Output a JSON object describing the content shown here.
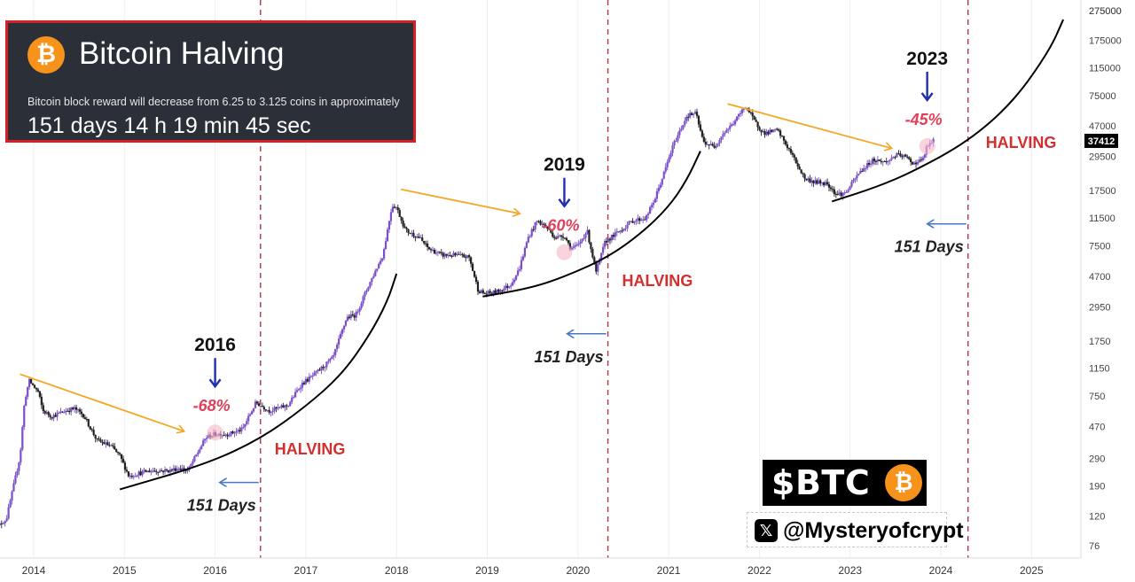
{
  "countdown": {
    "title": "Bitcoin Halving",
    "description": "Bitcoin block reward will decrease from 6.25 to 3.125 coins in approximately",
    "timer": "151 days 14 h 19 min 45 sec",
    "logo_icon": "bitcoin-logo-icon"
  },
  "badge": {
    "ticker": "$BTC",
    "logo_icon": "bitcoin-logo-icon"
  },
  "handle": {
    "icon": "x-logo-icon",
    "text": "@Mysteryofcrypt"
  },
  "colors": {
    "candle_up": "#7b4fc9",
    "candle_down": "#222222",
    "trend_arrow": "#f5a623",
    "halving_text": "#d32f2f",
    "halving_line": "#b5364b",
    "drawdown_text": "#e0405a",
    "year_arrow": "#1f2fb0",
    "days_arrow": "#4a78c8",
    "curve": "#000000",
    "price_tag_bg": "#000000",
    "price_tag_text": "#ffffff"
  },
  "chart_data": {
    "type": "candlestick",
    "x_axis": {
      "ticks": [
        "2014",
        "2015",
        "2016",
        "2017",
        "2018",
        "2019",
        "2020",
        "2021",
        "2022",
        "2023",
        "2024",
        "2025"
      ]
    },
    "y_axis": {
      "scale": "log",
      "ticks": [
        76,
        120,
        190,
        290,
        470,
        750,
        1150,
        1750,
        2950,
        4700,
        7500,
        11500,
        17500,
        29500,
        47000,
        75000,
        115000,
        175000,
        275000
      ],
      "top_label": "275000"
    },
    "current_price": 37412,
    "price_path": [
      [
        2013.55,
        95
      ],
      [
        2013.7,
        115
      ],
      [
        2013.85,
        300
      ],
      [
        2013.9,
        700
      ],
      [
        2013.95,
        950
      ],
      [
        2014.05,
        800
      ],
      [
        2014.1,
        600
      ],
      [
        2014.2,
        550
      ],
      [
        2014.35,
        600
      ],
      [
        2014.45,
        620
      ],
      [
        2014.55,
        560
      ],
      [
        2014.7,
        380
      ],
      [
        2014.85,
        350
      ],
      [
        2014.95,
        300
      ],
      [
        2015.05,
        220
      ],
      [
        2015.15,
        230
      ],
      [
        2015.3,
        240
      ],
      [
        2015.5,
        240
      ],
      [
        2015.6,
        250
      ],
      [
        2015.7,
        240
      ],
      [
        2015.8,
        310
      ],
      [
        2015.9,
        400
      ],
      [
        2016.0,
        420
      ],
      [
        2016.15,
        420
      ],
      [
        2016.3,
        450
      ],
      [
        2016.45,
        680
      ],
      [
        2016.6,
        600
      ],
      [
        2016.8,
        650
      ],
      [
        2016.95,
        900
      ],
      [
        2017.1,
        1050
      ],
      [
        2017.3,
        1350
      ],
      [
        2017.45,
        2500
      ],
      [
        2017.55,
        2600
      ],
      [
        2017.7,
        4200
      ],
      [
        2017.85,
        6500
      ],
      [
        2017.95,
        14000
      ],
      [
        2018.0,
        13500
      ],
      [
        2018.1,
        9500
      ],
      [
        2018.25,
        8500
      ],
      [
        2018.35,
        7200
      ],
      [
        2018.5,
        6500
      ],
      [
        2018.65,
        6500
      ],
      [
        2018.8,
        6300
      ],
      [
        2018.9,
        3800
      ],
      [
        2018.97,
        3600
      ],
      [
        2019.1,
        3700
      ],
      [
        2019.25,
        4100
      ],
      [
        2019.35,
        5200
      ],
      [
        2019.45,
        8500
      ],
      [
        2019.55,
        11000
      ],
      [
        2019.65,
        10000
      ],
      [
        2019.75,
        8500
      ],
      [
        2019.85,
        8800
      ],
      [
        2019.92,
        7200
      ],
      [
        2020.0,
        7500
      ],
      [
        2020.1,
        9500
      ],
      [
        2020.2,
        5000
      ],
      [
        2020.3,
        8000
      ],
      [
        2020.45,
        9300
      ],
      [
        2020.6,
        11000
      ],
      [
        2020.75,
        11500
      ],
      [
        2020.85,
        15500
      ],
      [
        2020.95,
        23000
      ],
      [
        2021.05,
        35000
      ],
      [
        2021.2,
        55000
      ],
      [
        2021.3,
        57000
      ],
      [
        2021.38,
        37000
      ],
      [
        2021.5,
        34000
      ],
      [
        2021.6,
        42000
      ],
      [
        2021.7,
        48000
      ],
      [
        2021.85,
        64000
      ],
      [
        2021.95,
        50000
      ],
      [
        2022.05,
        42000
      ],
      [
        2022.2,
        44000
      ],
      [
        2022.35,
        31000
      ],
      [
        2022.5,
        21000
      ],
      [
        2022.6,
        20000
      ],
      [
        2022.75,
        19500
      ],
      [
        2022.85,
        16500
      ],
      [
        2022.95,
        16800
      ],
      [
        2023.1,
        23000
      ],
      [
        2023.25,
        28000
      ],
      [
        2023.4,
        27000
      ],
      [
        2023.5,
        30000
      ],
      [
        2023.6,
        29500
      ],
      [
        2023.7,
        26500
      ],
      [
        2023.8,
        28000
      ],
      [
        2023.85,
        34500
      ],
      [
        2023.92,
        37412
      ]
    ],
    "halvings": [
      {
        "x": 2016.5,
        "label": "HALVING"
      },
      {
        "x": 2020.33,
        "label": "HALVING"
      },
      {
        "x": 2024.3,
        "label": "HALVING"
      }
    ],
    "cycles": [
      {
        "year_label": "2016",
        "drawdown": "-68%",
        "days_label": "151 Days",
        "trend_from": [
          2013.85,
          1050
        ],
        "trend_to": [
          2015.65,
          440
        ],
        "marker": [
          2016.0,
          430
        ],
        "days_arrow_y": 200,
        "curve": [
          [
            2014.95,
            180
          ],
          [
            2015.9,
            265
          ],
          [
            2016.5,
            390
          ],
          [
            2017.0,
            640
          ],
          [
            2017.4,
            1050
          ],
          [
            2017.7,
            1900
          ],
          [
            2017.9,
            3200
          ],
          [
            2018.0,
            4900
          ]
        ]
      },
      {
        "year_label": "2019",
        "drawdown": "-60%",
        "days_label": "151 Days",
        "trend_from": [
          2018.05,
          17800
        ],
        "trend_to": [
          2019.35,
          12300
        ],
        "marker": [
          2019.85,
          6800
        ],
        "days_arrow_y": 1950,
        "curve": [
          [
            2018.95,
            3450
          ],
          [
            2019.5,
            3950
          ],
          [
            2019.9,
            4800
          ],
          [
            2020.33,
            6300
          ],
          [
            2020.7,
            9100
          ],
          [
            2021.0,
            13600
          ],
          [
            2021.2,
            20500
          ],
          [
            2021.35,
            32000
          ]
        ]
      },
      {
        "year_label": "2023",
        "drawdown": "-45%",
        "days_label": "151 Days",
        "trend_from": [
          2021.65,
          66000
        ],
        "trend_to": [
          2023.45,
          33500
        ],
        "marker": [
          2023.85,
          34500
        ],
        "days_arrow_y": 10500,
        "curve": [
          [
            2022.8,
            14800
          ],
          [
            2023.3,
            18500
          ],
          [
            2023.7,
            23500
          ],
          [
            2024.3,
            37000
          ],
          [
            2024.8,
            68000
          ],
          [
            2025.2,
            150000
          ],
          [
            2025.35,
            240000
          ]
        ]
      }
    ]
  }
}
